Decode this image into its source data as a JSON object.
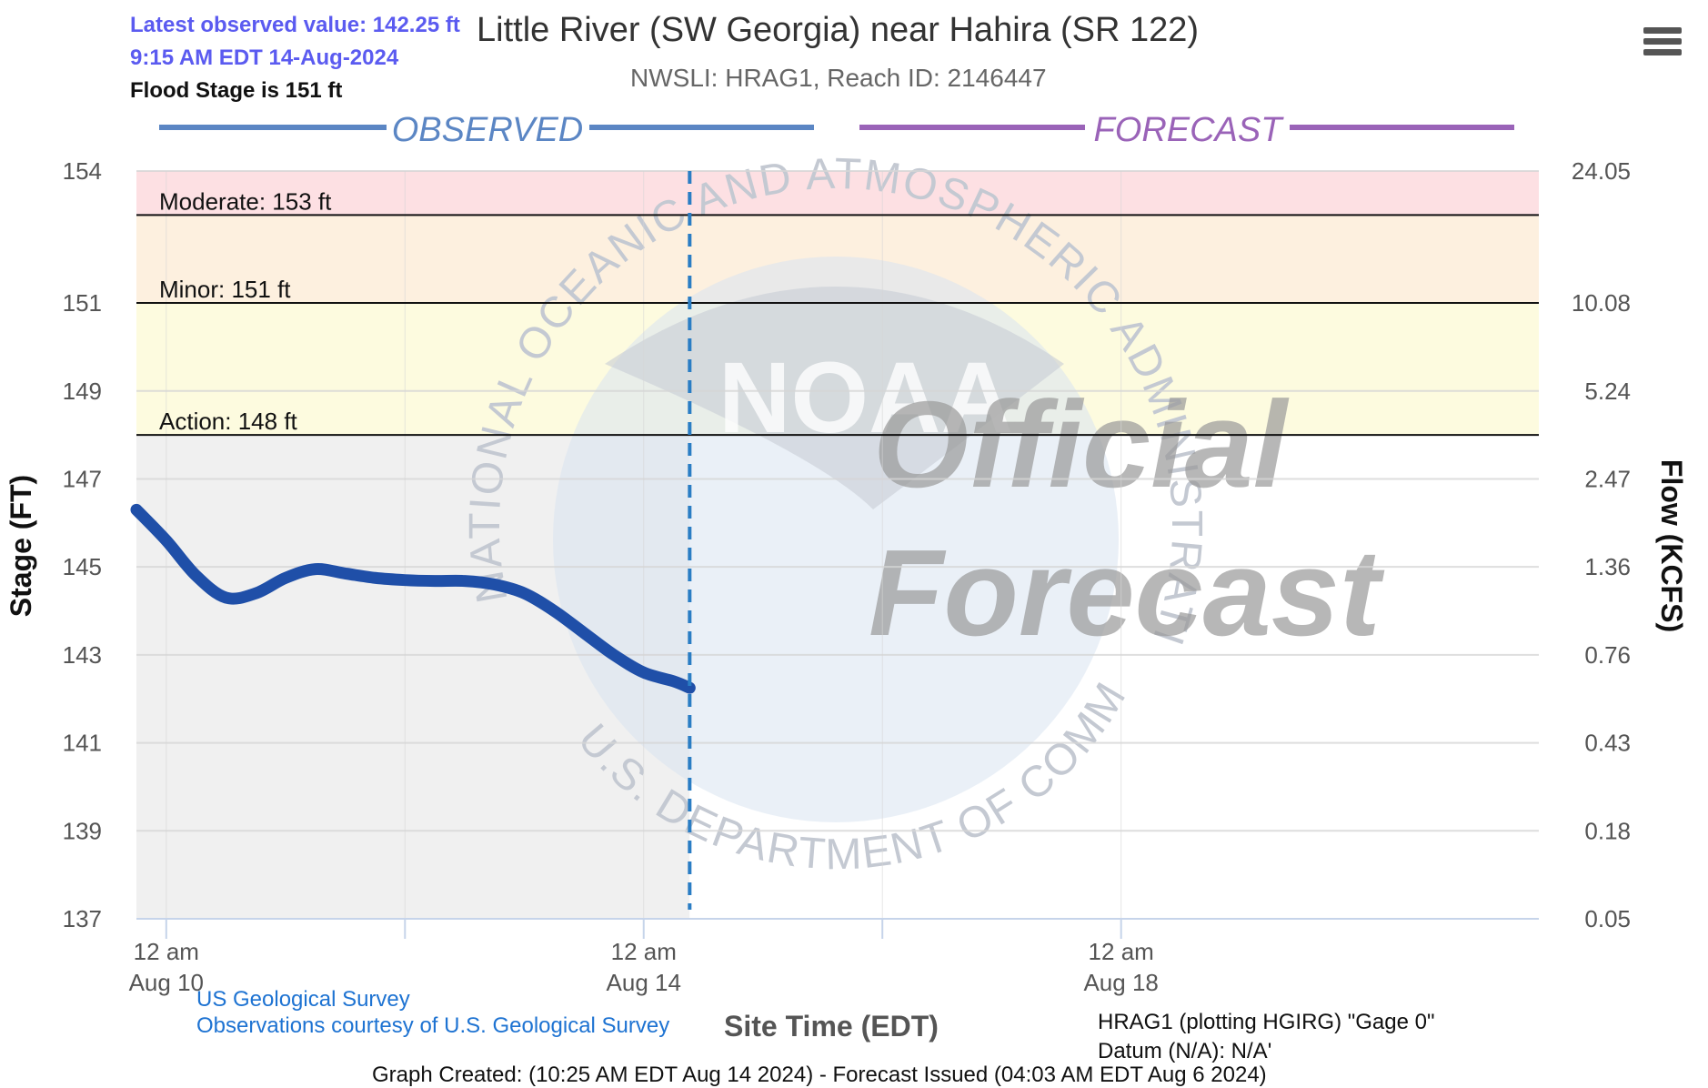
{
  "header": {
    "latest_value": "Latest observed value: 142.25 ft",
    "latest_time": "9:15 AM EDT 14-Aug-2024",
    "flood_stage_note": "Flood Stage is 151 ft",
    "title": "Little River (SW Georgia) near Hahira (SR 122)",
    "subtitle": "NWSLI: HRAG1, Reach ID: 2146447",
    "menu_icon": "hamburger-menu-icon"
  },
  "legend": {
    "observed_label": "OBSERVED",
    "forecast_label": "FORECAST",
    "observed_color": "#5b86c4",
    "forecast_color": "#9a63b8"
  },
  "watermark": {
    "ring_text_top": "NATIONAL OCEANIC AND ATMOSPHERIC ADMINISTRATION",
    "ring_text_bottom": "U.S. DEPARTMENT OF COMMERCE",
    "logo_text": "NOAA",
    "stamp_line1": "Official",
    "stamp_line2": "Forecast"
  },
  "colors": {
    "observed_line": "#1f4fa8",
    "now_line": "#2a7dc4",
    "moderate_band": "#fde0e3",
    "minor_band": "#fdf0df",
    "action_band": "#fdfbdf",
    "normal_band_observed": "#f0f0f0",
    "gridline": "#d6d6d6",
    "axis": "#c6d4ea"
  },
  "chart_data": {
    "type": "line",
    "title": "Little River (SW Georgia) near Hahira (SR 122)",
    "subtitle": "NWSLI: HRAG1, Reach ID: 2146447",
    "xlabel": "Site Time (EDT)",
    "ylabel": "Stage (FT)",
    "y2label": "Flow (KCFS)",
    "ylim": [
      137,
      154
    ],
    "xlim": [
      "2024-08-09 18:00",
      "2024-08-21 12:00"
    ],
    "x_ticks": [
      {
        "x": "2024-08-10 00:00",
        "line1": "12 am",
        "line2": "Aug 10"
      },
      {
        "x": "2024-08-14 00:00",
        "line1": "12 am",
        "line2": "Aug 14"
      },
      {
        "x": "2024-08-18 00:00",
        "line1": "12 am",
        "line2": "Aug 18"
      }
    ],
    "x_minor_ticks": [
      "2024-08-12 00:00",
      "2024-08-16 00:00"
    ],
    "y_ticks": [
      154,
      151,
      149,
      147,
      145,
      143,
      141,
      139,
      137
    ],
    "y2_ticks": [
      "24.05",
      "10.08",
      "5.24",
      "2.47",
      "1.36",
      "0.76",
      "0.43",
      "0.18",
      "0.05"
    ],
    "grid": true,
    "flood_categories": [
      {
        "name": "Moderate",
        "label": "Moderate: 153 ft",
        "stage": 153
      },
      {
        "name": "Minor",
        "label": "Minor: 151 ft",
        "stage": 151
      },
      {
        "name": "Action",
        "label": "Action: 148 ft",
        "stage": 148
      }
    ],
    "now": "2024-08-14 09:15",
    "series": [
      {
        "name": "Observed",
        "x": [
          "2024-08-09 18:00",
          "2024-08-10 00:00",
          "2024-08-10 06:00",
          "2024-08-10 12:00",
          "2024-08-10 18:00",
          "2024-08-11 00:00",
          "2024-08-11 06:00",
          "2024-08-11 12:00",
          "2024-08-11 18:00",
          "2024-08-12 00:00",
          "2024-08-12 06:00",
          "2024-08-12 12:00",
          "2024-08-12 18:00",
          "2024-08-13 00:00",
          "2024-08-13 06:00",
          "2024-08-13 12:00",
          "2024-08-13 18:00",
          "2024-08-14 00:00",
          "2024-08-14 06:00",
          "2024-08-14 09:15"
        ],
        "values": [
          146.3,
          145.6,
          144.8,
          144.3,
          144.4,
          144.75,
          144.95,
          144.85,
          144.75,
          144.7,
          144.68,
          144.68,
          144.6,
          144.4,
          144.0,
          143.5,
          143.0,
          142.6,
          142.4,
          142.25
        ]
      }
    ]
  },
  "footer": {
    "usgs_link": "US Geological Survey",
    "observations_link": "Observations courtesy of U.S. Geological Survey",
    "xaxis_title": "Site Time (EDT)",
    "datum_line1": "HRAG1 (plotting HGIRG) \"Gage 0\"",
    "datum_line2": "Datum (N/A): N/A'",
    "graph_created": "Graph Created: (10:25 AM EDT Aug 14 2024) - Forecast Issued (04:03 AM EDT Aug 6 2024)"
  }
}
